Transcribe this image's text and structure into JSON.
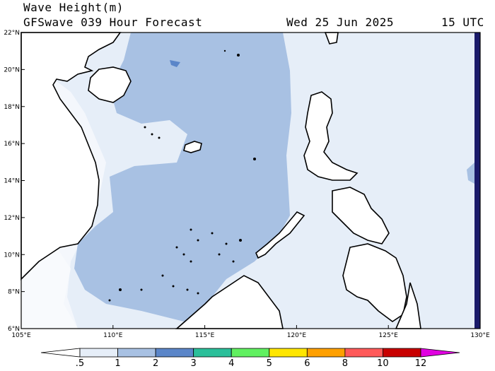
{
  "title": {
    "line1": "Wave Height(m)",
    "line2": "GFSwave 039 Hour Forecast",
    "date": "Wed 25 Jun 2025",
    "time": "15 UTC"
  },
  "map": {
    "lat_labels": [
      "22°N",
      "20°N",
      "18°N",
      "16°N",
      "14°N",
      "12°N",
      "10°N",
      "8°N",
      "6°N"
    ],
    "lon_labels": [
      "105°E",
      "110°E",
      "115°E",
      "120°E",
      "125°E",
      "130°E"
    ],
    "lat_range": [
      6,
      22
    ],
    "lon_range": [
      105,
      130
    ]
  },
  "colorbar": {
    "labels": [
      ".5",
      "1",
      "2",
      "3",
      "4",
      "5",
      "6",
      "8",
      "10",
      "12"
    ],
    "colors": [
      "#ffffff",
      "#e6eef8",
      "#a8c1e3",
      "#5b86c9",
      "#2bbf9a",
      "#60f060",
      "#ffe600",
      "#ffa000",
      "#ff5a5a",
      "#c80000",
      "#e000e0"
    ]
  }
}
